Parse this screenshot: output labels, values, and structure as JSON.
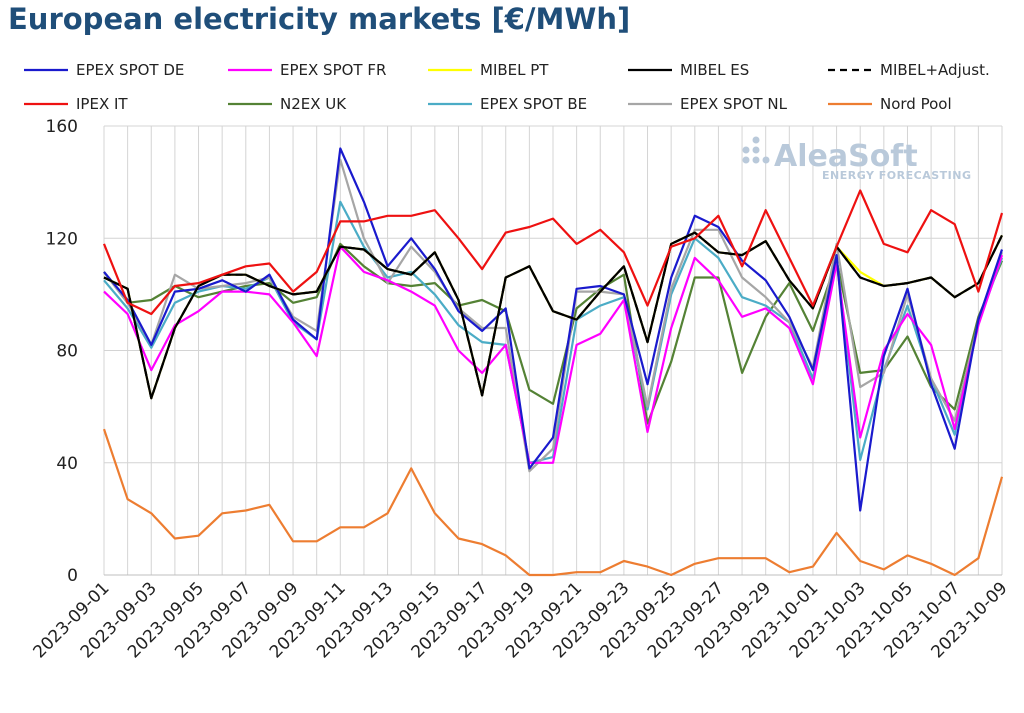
{
  "title": "European electricity markets [€/MWh]",
  "watermark": {
    "brand": "AleaSoft",
    "tagline": "ENERGY FORECASTING"
  },
  "chart_data": {
    "type": "line",
    "ylim": [
      0,
      160
    ],
    "yticks": [
      0,
      40,
      80,
      120,
      160
    ],
    "grid": "vertical lines per day, horizontal at y ticks",
    "legend_position": "top",
    "x": [
      "2023-09-01",
      "2023-09-02",
      "2023-09-03",
      "2023-09-04",
      "2023-09-05",
      "2023-09-06",
      "2023-09-07",
      "2023-09-08",
      "2023-09-09",
      "2023-09-10",
      "2023-09-11",
      "2023-09-12",
      "2023-09-13",
      "2023-09-14",
      "2023-09-15",
      "2023-09-16",
      "2023-09-17",
      "2023-09-18",
      "2023-09-19",
      "2023-09-20",
      "2023-09-21",
      "2023-09-22",
      "2023-09-23",
      "2023-09-24",
      "2023-09-25",
      "2023-09-26",
      "2023-09-27",
      "2023-09-28",
      "2023-09-29",
      "2023-09-30",
      "2023-10-01",
      "2023-10-02",
      "2023-10-03",
      "2023-10-04",
      "2023-10-05",
      "2023-10-06",
      "2023-10-07",
      "2023-10-08",
      "2023-10-09"
    ],
    "xtick_labels": [
      "2023-09-01",
      "2023-09-03",
      "2023-09-05",
      "2023-09-07",
      "2023-09-09",
      "2023-09-11",
      "2023-09-13",
      "2023-09-15",
      "2023-09-17",
      "2023-09-19",
      "2023-09-21",
      "2023-09-23",
      "2023-09-25",
      "2023-09-27",
      "2023-09-29",
      "2023-10-01",
      "2023-10-03",
      "2023-10-05",
      "2023-10-07",
      "2023-10-09"
    ],
    "series": [
      {
        "name": "EPEX SPOT DE",
        "color": "#1a1acd",
        "dash": "",
        "values": [
          108,
          98,
          82,
          101,
          102,
          105,
          101,
          107,
          91,
          84,
          152,
          133,
          110,
          120,
          109,
          94,
          87,
          95,
          38,
          49,
          102,
          103,
          100,
          68,
          106,
          128,
          124,
          112,
          105,
          92,
          73,
          114,
          23,
          78,
          102,
          68,
          45,
          91,
          116
        ]
      },
      {
        "name": "EPEX SPOT FR",
        "color": "#ff00ff",
        "dash": "",
        "values": [
          101,
          93,
          73,
          89,
          94,
          101,
          101,
          100,
          90,
          78,
          117,
          108,
          105,
          101,
          96,
          80,
          72,
          82,
          40,
          40,
          82,
          86,
          98,
          51,
          88,
          113,
          105,
          92,
          95,
          88,
          68,
          111,
          49,
          80,
          93,
          82,
          52,
          89,
          114
        ]
      },
      {
        "name": "MIBEL PT",
        "color": "#ffff00",
        "dash": "",
        "values": [
          106,
          102,
          63,
          88,
          103,
          107,
          107,
          103,
          100,
          101,
          117,
          116,
          109,
          107,
          115,
          98,
          64,
          106,
          110,
          94,
          91,
          101,
          110,
          83,
          118,
          122,
          115,
          114,
          119,
          105,
          95,
          117,
          108,
          103,
          104,
          106,
          99,
          104,
          121
        ]
      },
      {
        "name": "MIBEL ES",
        "color": "#000000",
        "dash": "",
        "values": [
          106,
          102,
          63,
          88,
          103,
          107,
          107,
          103,
          100,
          101,
          117,
          116,
          109,
          107,
          115,
          98,
          64,
          106,
          110,
          94,
          91,
          101,
          110,
          83,
          118,
          122,
          115,
          114,
          119,
          105,
          95,
          117,
          106,
          103,
          104,
          106,
          99,
          104,
          121
        ]
      },
      {
        "name": "MIBEL+Adjust.",
        "color": "#000000",
        "dash": "7,5",
        "values": [
          106,
          102,
          63,
          88,
          103,
          107,
          107,
          103,
          100,
          101,
          117,
          116,
          109,
          107,
          115,
          98,
          64,
          106,
          110,
          94,
          91,
          101,
          110,
          83,
          118,
          122,
          115,
          114,
          119,
          105,
          95,
          117,
          106,
          103,
          104,
          106,
          99,
          104,
          121
        ]
      },
      {
        "name": "IPEX IT",
        "color": "#ee1111",
        "dash": "",
        "values": [
          118,
          97,
          93,
          103,
          104,
          107,
          110,
          111,
          101,
          108,
          126,
          126,
          128,
          128,
          130,
          120,
          109,
          122,
          124,
          127,
          118,
          123,
          115,
          96,
          117,
          120,
          128,
          110,
          130,
          113,
          96,
          117,
          137,
          118,
          115,
          130,
          125,
          101,
          129
        ]
      },
      {
        "name": "N2EX UK",
        "color": "#548235",
        "dash": "",
        "values": [
          108,
          97,
          98,
          103,
          99,
          101,
          103,
          104,
          97,
          99,
          118,
          110,
          104,
          103,
          104,
          96,
          98,
          94,
          66,
          61,
          95,
          102,
          107,
          54,
          76,
          106,
          106,
          72,
          92,
          104,
          87,
          112,
          72,
          73,
          85,
          67,
          59,
          92,
          112
        ]
      },
      {
        "name": "EPEX SPOT BE",
        "color": "#4bacc6",
        "dash": "",
        "values": [
          105,
          95,
          81,
          97,
          101,
          103,
          102,
          106,
          90,
          84,
          133,
          117,
          106,
          108,
          100,
          89,
          83,
          82,
          40,
          42,
          91,
          96,
          99,
          59,
          100,
          120,
          113,
          99,
          96,
          90,
          70,
          113,
          41,
          73,
          96,
          70,
          50,
          90,
          113
        ]
      },
      {
        "name": "EPEX SPOT NL",
        "color": "#a6a6a6",
        "dash": "",
        "values": [
          108,
          97,
          82,
          107,
          102,
          103,
          104,
          106,
          92,
          87,
          148,
          120,
          104,
          117,
          108,
          95,
          88,
          88,
          37,
          45,
          101,
          101,
          100,
          60,
          102,
          123,
          123,
          106,
          99,
          90,
          74,
          118,
          67,
          72,
          100,
          70,
          55,
          90,
          115
        ]
      },
      {
        "name": "Nord Pool",
        "color": "#ed7d31",
        "dash": "",
        "values": [
          52,
          27,
          22,
          13,
          14,
          22,
          23,
          25,
          12,
          12,
          17,
          17,
          22,
          38,
          22,
          13,
          11,
          7,
          0,
          0,
          1,
          1,
          5,
          3,
          0,
          4,
          6,
          6,
          6,
          1,
          3,
          15,
          5,
          2,
          7,
          4,
          0,
          6,
          35
        ]
      }
    ]
  }
}
